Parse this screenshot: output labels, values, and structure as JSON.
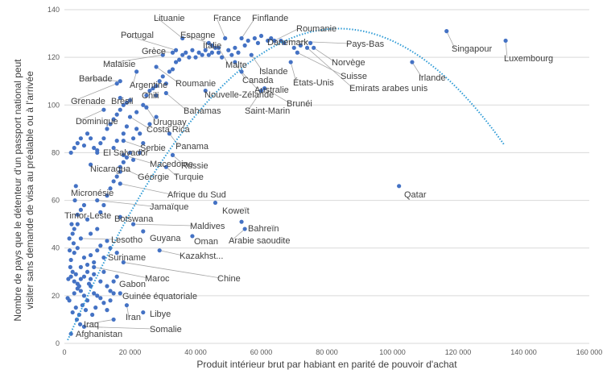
{
  "chart_data": {
    "type": "scatter",
    "title": "",
    "xlabel": "Produit intérieur brut par habiant en parité de pouvoir d'achat",
    "ylabel_lines": [
      "Nombre de pays que le détenteur d'un passport national peut",
      "visiter sans demande de visa au préalable ou à l'arrivée"
    ],
    "xlim": [
      0,
      160000
    ],
    "ylim": [
      0,
      140
    ],
    "x_ticks": [
      0,
      20000,
      40000,
      60000,
      80000,
      100000,
      120000,
      140000,
      160000
    ],
    "x_tick_labels": [
      "0",
      "20 000",
      "40 000",
      "60 000",
      "80 000",
      "100 000",
      "120 000",
      "140 000",
      "160 000"
    ],
    "y_ticks": [
      0,
      20,
      40,
      60,
      80,
      100,
      120,
      140
    ],
    "y_tick_labels": [
      "0",
      "20",
      "40",
      "60",
      "80",
      "100",
      "120",
      "140"
    ],
    "grid": "horizontal",
    "marker_color": "#4472c4",
    "trendline": {
      "type": "polynomial-2",
      "color": "#2e9bd6",
      "style": "dotted",
      "coefficients": [
        -1.915e-08,
        0.003202,
        -1.8
      ],
      "x_range": [
        1000,
        134500
      ]
    },
    "labeled_points": [
      {
        "name": "Lituanie",
        "x": 36000,
        "y": 128
      },
      {
        "name": "France",
        "x": 49000,
        "y": 128
      },
      {
        "name": "Finflande",
        "x": 54000,
        "y": 128
      },
      {
        "name": "Roumanie",
        "x": 64000,
        "y": 127
      },
      {
        "name": "Portugal",
        "x": 34000,
        "y": 123
      },
      {
        "name": "Espagne",
        "x": 44000,
        "y": 126
      },
      {
        "name": "Danemark",
        "x": 62000,
        "y": 127
      },
      {
        "name": "Pays-Bas",
        "x": 66000,
        "y": 127
      },
      {
        "name": "Grèce",
        "x": 33000,
        "y": 122
      },
      {
        "name": "Italie",
        "x": 45000,
        "y": 125
      },
      {
        "name": "Malte",
        "x": 47000,
        "y": 124
      },
      {
        "name": "Singapour",
        "x": 116500,
        "y": 131
      },
      {
        "name": "Malaisie",
        "x": 30000,
        "y": 121
      },
      {
        "name": "Islande",
        "x": 57000,
        "y": 121
      },
      {
        "name": "Norvège",
        "x": 76000,
        "y": 124
      },
      {
        "name": "Luxembourg",
        "x": 134500,
        "y": 127
      },
      {
        "name": "Barbade",
        "x": 17000,
        "y": 110
      },
      {
        "name": "Argentine",
        "x": 22000,
        "y": 114
      },
      {
        "name": "Roumanie",
        "x": 28000,
        "y": 116
      },
      {
        "name": "Canada",
        "x": 52000,
        "y": 118
      },
      {
        "name": "Suisse",
        "x": 71000,
        "y": 122
      },
      {
        "name": "États-Unis",
        "x": 69000,
        "y": 118
      },
      {
        "name": "Irlande",
        "x": 106000,
        "y": 118
      },
      {
        "name": "Australie",
        "x": 54000,
        "y": 114
      },
      {
        "name": "Emirats arabes unis",
        "x": 74000,
        "y": 124
      },
      {
        "name": "Chili",
        "x": 28000,
        "y": 108
      },
      {
        "name": "Nouvelle-Zélande",
        "x": 43000,
        "y": 106
      },
      {
        "name": "Grenade",
        "x": 16000,
        "y": 109
      },
      {
        "name": "Brésil",
        "x": 17000,
        "y": 103
      },
      {
        "name": "Brunéi",
        "x": 61000,
        "y": 107
      },
      {
        "name": "Bahamas",
        "x": 31000,
        "y": 105
      },
      {
        "name": "Saint-Marin",
        "x": 60000,
        "y": 106
      },
      {
        "name": "Dominique",
        "x": 12000,
        "y": 98
      },
      {
        "name": "Uruguay",
        "x": 25000,
        "y": 99
      },
      {
        "name": "Costa Rica",
        "x": 20000,
        "y": 95
      },
      {
        "name": "Serbie",
        "x": 18000,
        "y": 85
      },
      {
        "name": "Panama",
        "x": 32000,
        "y": 88
      },
      {
        "name": "El Salvador",
        "x": 10000,
        "y": 80
      },
      {
        "name": "Macedoine",
        "x": 18000,
        "y": 79
      },
      {
        "name": "Russie",
        "x": 33000,
        "y": 79
      },
      {
        "name": "Nicaragua",
        "x": 8000,
        "y": 75
      },
      {
        "name": "Géorgie",
        "x": 17000,
        "y": 74
      },
      {
        "name": "Turquie",
        "x": 31000,
        "y": 74
      },
      {
        "name": "Micronésie",
        "x": 3500,
        "y": 66
      },
      {
        "name": "Afrique du Sud",
        "x": 17000,
        "y": 67
      },
      {
        "name": "Jamaïque",
        "x": 10000,
        "y": 60
      },
      {
        "name": "Koweït",
        "x": 46000,
        "y": 59
      },
      {
        "name": "Qatar",
        "x": 102000,
        "y": 66
      },
      {
        "name": "Timor-Leste",
        "x": 4000,
        "y": 54
      },
      {
        "name": "Botswana",
        "x": 17000,
        "y": 53
      },
      {
        "name": "Bahreïn",
        "x": 54000,
        "y": 51
      },
      {
        "name": "Maldives",
        "x": 21000,
        "y": 50
      },
      {
        "name": "Lesotho",
        "x": 5000,
        "y": 44
      },
      {
        "name": "Guyana",
        "x": 24000,
        "y": 47
      },
      {
        "name": "Oman",
        "x": 39000,
        "y": 45
      },
      {
        "name": "Arabie saoudite",
        "x": 55000,
        "y": 48
      },
      {
        "name": "Suriname",
        "x": 16000,
        "y": 38
      },
      {
        "name": "Kazakhst...",
        "x": 29000,
        "y": 39
      },
      {
        "name": "Maroc",
        "x": 9000,
        "y": 32
      },
      {
        "name": "Chine",
        "x": 18000,
        "y": 34
      },
      {
        "name": "Gabon",
        "x": 15000,
        "y": 26
      },
      {
        "name": "Guinée équatoriale",
        "x": 17000,
        "y": 21
      },
      {
        "name": "Iran",
        "x": 19000,
        "y": 16
      },
      {
        "name": "Libye",
        "x": 24000,
        "y": 13
      },
      {
        "name": "Iraq",
        "x": 15000,
        "y": 10
      },
      {
        "name": "Somalie",
        "x": 6000,
        "y": 7
      },
      {
        "name": "Afghanistan",
        "x": 2000,
        "y": 4
      }
    ],
    "other_points": [
      [
        1000,
        19
      ],
      [
        1500,
        18
      ],
      [
        2000,
        28
      ],
      [
        2500,
        30
      ],
      [
        3000,
        26
      ],
      [
        3500,
        29
      ],
      [
        4000,
        25
      ],
      [
        4500,
        24
      ],
      [
        5000,
        22
      ],
      [
        6000,
        20
      ],
      [
        7000,
        18
      ],
      [
        7500,
        25
      ],
      [
        8000,
        24
      ],
      [
        9000,
        21
      ],
      [
        10000,
        20
      ],
      [
        11000,
        19
      ],
      [
        12000,
        17
      ],
      [
        13000,
        14
      ],
      [
        14000,
        18
      ],
      [
        15000,
        21
      ],
      [
        2000,
        35
      ],
      [
        3000,
        38
      ],
      [
        4000,
        40
      ],
      [
        5000,
        32
      ],
      [
        6000,
        36
      ],
      [
        7000,
        33
      ],
      [
        8000,
        37
      ],
      [
        9000,
        34
      ],
      [
        10000,
        39
      ],
      [
        11000,
        41
      ],
      [
        12000,
        36
      ],
      [
        13000,
        43
      ],
      [
        14000,
        40
      ],
      [
        2500,
        13
      ],
      [
        3500,
        15
      ],
      [
        4500,
        12
      ],
      [
        5500,
        16
      ],
      [
        6500,
        14
      ],
      [
        8500,
        12
      ],
      [
        9500,
        15
      ],
      [
        1500,
        44
      ],
      [
        2500,
        46
      ],
      [
        3000,
        48
      ],
      [
        4000,
        50
      ],
      [
        5000,
        56
      ],
      [
        6000,
        58
      ],
      [
        7000,
        52
      ],
      [
        8000,
        46
      ],
      [
        10000,
        48
      ],
      [
        11000,
        55
      ],
      [
        12000,
        58
      ],
      [
        13000,
        62
      ],
      [
        14000,
        65
      ],
      [
        15000,
        68
      ],
      [
        16000,
        70
      ],
      [
        17000,
        72
      ],
      [
        18000,
        76
      ],
      [
        19000,
        78
      ],
      [
        20000,
        80
      ],
      [
        21000,
        77
      ],
      [
        2000,
        80
      ],
      [
        3000,
        82
      ],
      [
        4000,
        84
      ],
      [
        5000,
        86
      ],
      [
        6000,
        83
      ],
      [
        7000,
        88
      ],
      [
        8000,
        86
      ],
      [
        9000,
        82
      ],
      [
        10000,
        81
      ],
      [
        11000,
        84
      ],
      [
        12000,
        86
      ],
      [
        13000,
        90
      ],
      [
        14000,
        92
      ],
      [
        15000,
        94
      ],
      [
        16000,
        96
      ],
      [
        17000,
        98
      ],
      [
        18000,
        100
      ],
      [
        19000,
        101
      ],
      [
        20000,
        102
      ],
      [
        22000,
        97
      ],
      [
        24000,
        100
      ],
      [
        25000,
        104
      ],
      [
        26000,
        106
      ],
      [
        27000,
        107
      ],
      [
        28000,
        104
      ],
      [
        29000,
        110
      ],
      [
        30000,
        112
      ],
      [
        31000,
        109
      ],
      [
        32000,
        114
      ],
      [
        33000,
        115
      ],
      [
        34000,
        118
      ],
      [
        35000,
        119
      ],
      [
        36000,
        121
      ],
      [
        37000,
        122
      ],
      [
        38000,
        120
      ],
      [
        39000,
        123
      ],
      [
        40000,
        120
      ],
      [
        41000,
        122
      ],
      [
        42000,
        121
      ],
      [
        43000,
        123
      ],
      [
        44000,
        121
      ],
      [
        45000,
        122
      ],
      [
        46000,
        124
      ],
      [
        47000,
        122
      ],
      [
        48000,
        120
      ],
      [
        50000,
        123
      ],
      [
        51000,
        121
      ],
      [
        52000,
        124
      ],
      [
        53000,
        122
      ],
      [
        55000,
        125
      ],
      [
        56000,
        127
      ],
      [
        58000,
        128
      ],
      [
        59000,
        126
      ],
      [
        60000,
        129
      ],
      [
        63000,
        128
      ],
      [
        67000,
        126
      ],
      [
        70000,
        124
      ],
      [
        72000,
        125
      ],
      [
        75000,
        126
      ],
      [
        22000,
        90
      ],
      [
        23000,
        88
      ],
      [
        26000,
        92
      ],
      [
        28000,
        95
      ],
      [
        18000,
        88
      ],
      [
        19000,
        91
      ],
      [
        16000,
        85
      ],
      [
        24000,
        84
      ],
      [
        15000,
        82
      ],
      [
        21000,
        86
      ],
      [
        23000,
        80
      ],
      [
        6000,
        28
      ],
      [
        7000,
        30
      ],
      [
        8000,
        27
      ],
      [
        9000,
        29
      ],
      [
        11000,
        26
      ],
      [
        12000,
        30
      ],
      [
        13000,
        24
      ],
      [
        14000,
        22
      ],
      [
        16000,
        28
      ],
      [
        3000,
        21
      ],
      [
        4000,
        23
      ],
      [
        5000,
        27
      ],
      [
        1800,
        32
      ],
      [
        2800,
        42
      ],
      [
        3800,
        10
      ],
      [
        4800,
        8
      ],
      [
        1200,
        27
      ],
      [
        1600,
        39
      ],
      [
        2200,
        50
      ],
      [
        3200,
        60
      ]
    ]
  }
}
